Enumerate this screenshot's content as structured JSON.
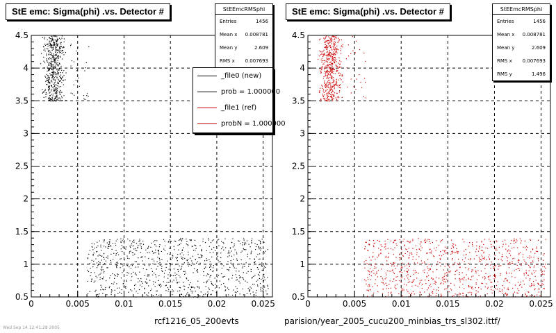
{
  "footer_text": "rcf1216_05_200evts",
  "footer_text_right": "parision/year_2005_cucu200_minbias_trs_sl302.ittf/",
  "corner_text": "Wed Sep 14 12:41:28 2005",
  "legend": {
    "items": [
      {
        "label": "_file0 (new)",
        "color": "#000000"
      },
      {
        "label": "prob = 1.000000",
        "color": "#000000"
      },
      {
        "label": "_file1 (ref)",
        "color": "#cc0000"
      },
      {
        "label": "probN = 1.000000",
        "color": "#cc0000"
      }
    ]
  },
  "stats": [
    {
      "title": "StEEmcRMSphi",
      "rows": [
        {
          "label": "Entries",
          "value": "1456"
        },
        {
          "label": "Mean x",
          "value": "0.008781"
        },
        {
          "label": "Mean y",
          "value": "2.609"
        },
        {
          "label": "RMS x",
          "value": "0.007693"
        }
      ]
    },
    {
      "title": "StEEmcRMSphi",
      "rows": [
        {
          "label": "Entries",
          "value": "1456"
        },
        {
          "label": "Mean x",
          "value": "0.008781"
        },
        {
          "label": "Mean y",
          "value": "2.609"
        },
        {
          "label": "RMS x",
          "value": "0.007693"
        },
        {
          "label": "RMS y",
          "value": "1.496"
        }
      ]
    }
  ],
  "chart_data": [
    {
      "type": "scatter",
      "title": "StE emc: Sigma(phi) .vs. Detector #",
      "xlabel": "rcf1216_05_200evts",
      "ylabel": "",
      "xlim": [
        0,
        0.026
      ],
      "ylim": [
        0.5,
        4.5
      ],
      "xticks": [
        0,
        0.005,
        0.01,
        0.015,
        0.02,
        0.025
      ],
      "xtick_labels": [
        "0",
        "0.005",
        "0.01",
        "0.015",
        "0.02",
        "0.025"
      ],
      "yticks": [
        0.5,
        1,
        1.5,
        2,
        2.5,
        3,
        3.5,
        4,
        4.5
      ],
      "ytick_labels": [
        "0.5",
        "1",
        "1.5",
        "2",
        "2.5",
        "3",
        "3.5",
        "4",
        "4.5"
      ],
      "grid": true,
      "marker_color": "#000000",
      "clusters": [
        {
          "x_range": [
            0.0005,
            0.0037
          ],
          "y_range": [
            3.5,
            4.5
          ],
          "x_center": 0.0024,
          "count": 500
        },
        {
          "x_range": [
            0.004,
            0.0062
          ],
          "y_range": [
            3.5,
            4.5
          ],
          "count": 25
        },
        {
          "x_range": [
            0.006,
            0.0255
          ],
          "y_range": [
            0.5,
            1.4
          ],
          "count": 900
        }
      ]
    },
    {
      "type": "scatter",
      "title": "StE emc: Sigma(phi) .vs. Detector #",
      "xlabel": "parision/year_2005_cucu200_minbias_trs_sl302.ittf/",
      "ylabel": "",
      "xlim": [
        0,
        0.026
      ],
      "ylim": [
        0.5,
        4.5
      ],
      "xticks": [
        0,
        0.005,
        0.01,
        0.015,
        0.02,
        0.025
      ],
      "xtick_labels": [
        "0",
        "0.005",
        "0.01",
        "0.015",
        "0.02",
        "0.025"
      ],
      "yticks": [
        0.5,
        1,
        1.5,
        2,
        2.5,
        3,
        3.5,
        4,
        4.5
      ],
      "ytick_labels": [
        "0.5",
        "1",
        "1.5",
        "2",
        "2.5",
        "3",
        "3.5",
        "4",
        "4.5"
      ],
      "grid": true,
      "marker_color": "#cc0000",
      "clusters": [
        {
          "x_range": [
            0.0005,
            0.0037
          ],
          "y_range": [
            3.5,
            4.5
          ],
          "x_center": 0.0024,
          "count": 500
        },
        {
          "x_range": [
            0.004,
            0.0062
          ],
          "y_range": [
            3.5,
            4.5
          ],
          "count": 25
        },
        {
          "x_range": [
            0.006,
            0.0255
          ],
          "y_range": [
            0.5,
            1.4
          ],
          "count": 900
        }
      ]
    }
  ]
}
